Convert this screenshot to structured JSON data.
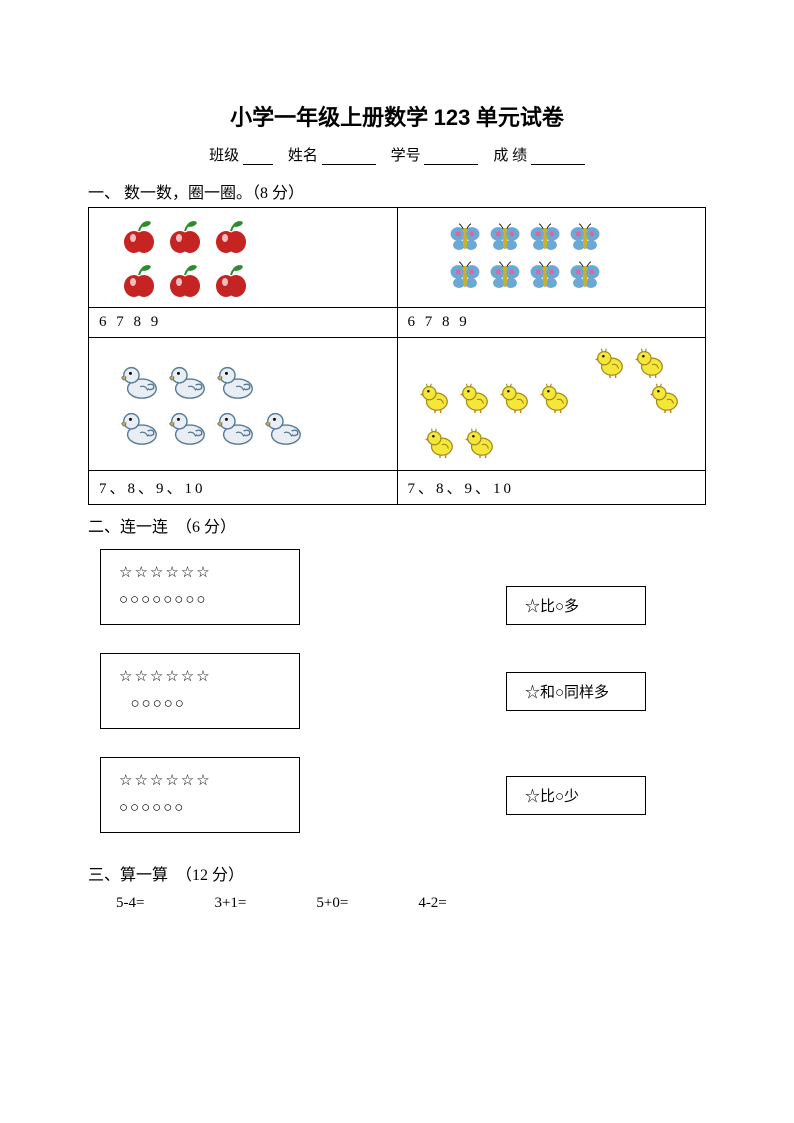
{
  "title_prefix": "小学一年级上册数学 ",
  "title_num": "123",
  "title_suffix": " 单元试卷",
  "info": {
    "class_label": "班级",
    "name_label": "姓名",
    "id_label": "学号",
    "score_label": "成 绩",
    "blank_w_class": 30,
    "blank_w_name": 54,
    "blank_w_id": 54,
    "blank_w_score": 54
  },
  "q1": {
    "heading": "一、 数一数，圈一圈。（8 分）",
    "cells": {
      "apple": {
        "rows": [
          3,
          3
        ],
        "ans": "6 7 8 9",
        "icon": "apple",
        "color_body": "#c62323",
        "color_leaf": "#2e8b2e",
        "size": 40
      },
      "butterfly": {
        "rows": [
          4,
          4
        ],
        "ans": "6 7 8 9",
        "icon": "butterfly",
        "color_wing": "#6aa9d6",
        "color_body": "#c9b22b",
        "color_spot": "#d66aa0",
        "size": 34
      },
      "duck": {
        "rows": [
          3,
          4
        ],
        "ans": "7、8、9、10",
        "icon": "duck",
        "color_body": "#e8eef3",
        "color_outline": "#5a7b95",
        "color_beak": "#e6a52b",
        "size": 42
      },
      "chick": {
        "rows": [
          3,
          3,
          3
        ],
        "special_layout": true,
        "ans": "7、8、9、10",
        "icon": "chick",
        "color_body": "#f5e63a",
        "color_outline": "#a08a1a",
        "color_beak": "#d47a1a",
        "size": 34
      }
    }
  },
  "q2": {
    "heading": "二、连一连　（6 分）",
    "items": [
      {
        "stars": 6,
        "circles": 8,
        "right": "☆比○多"
      },
      {
        "stars": 6,
        "circles": 5,
        "right": "☆和○同样多",
        "circles_indent": true
      },
      {
        "stars": 6,
        "circles": 6,
        "right": "☆比○少"
      }
    ],
    "star_char": "☆",
    "circle_char": "○"
  },
  "q3": {
    "heading": "三、算一算　（12 分）",
    "problems": [
      "5-4=",
      "3+1=",
      "5+0=",
      "4-2="
    ]
  },
  "colors": {
    "text": "#000000",
    "bg": "#ffffff",
    "border": "#000000"
  }
}
